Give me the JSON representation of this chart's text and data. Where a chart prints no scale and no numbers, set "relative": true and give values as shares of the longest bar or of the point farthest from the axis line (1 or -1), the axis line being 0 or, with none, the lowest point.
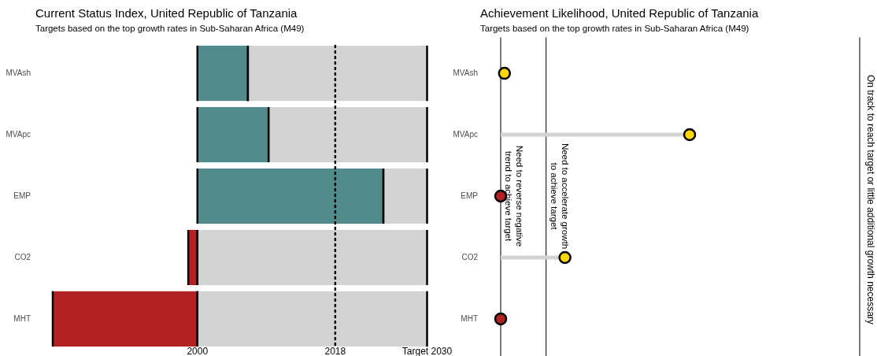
{
  "chart_data": [
    {
      "type": "bar",
      "orientation": "horizontal",
      "title": "Current Status Index, United Republic of Tanzania",
      "subtitle": "Targets based on the top growth rates in Sub-Saharan Africa (M49)",
      "categories": [
        "MVAsh",
        "MVApc",
        "EMP",
        "CO2",
        "MHT"
      ],
      "series": [
        {
          "base": [
            2000,
            2000,
            2000,
            2000,
            2000
          ],
          "colors": [
            "#528b8b",
            "#528b8b",
            "#528b8b",
            "#b22222",
            "#b22222"
          ],
          "values": [
            6.6,
            9.3,
            24.3,
            -1.2,
            -18.9
          ]
        },
        {
          "base": [
            2006.6,
            2009.3,
            2024.3,
            2000,
            2000
          ],
          "color": "#d3d3d3",
          "values": [
            23.4,
            20.7,
            5.7,
            30,
            30
          ]
        }
      ],
      "xlim": [
        1981.1,
        2030
      ],
      "xticks": [
        2000,
        2018,
        {
          "value": 2030,
          "label": "Target 2030"
        }
      ],
      "ref_lines": [
        {
          "axis": "x",
          "value": 2018,
          "line_style": "dotted",
          "color": "#000000"
        }
      ]
    },
    {
      "type": "lollipop",
      "orientation": "horizontal",
      "relative": true,
      "title": "Achievement Likelihood, United Republic of Tanzania",
      "subtitle": "Targets based on the top growth rates in Sub-Saharan Africa (M49)",
      "categories": [
        "MVAsh",
        "MVApc",
        "EMP",
        "CO2",
        "MHT"
      ],
      "series": [
        {
          "colors": [
            "#ffd700",
            "#ffd700",
            "#b22222",
            "#ffd700",
            "#b22222"
          ],
          "values": [
            0.02,
            1,
            0,
            0.34,
            0
          ]
        }
      ],
      "marker": "circle",
      "tick_labels": "y",
      "ref_lines": [
        {
          "axis": "x",
          "value": 0,
          "label": "Need to reverse negative trend to achieve target",
          "color": "#333333"
        },
        {
          "axis": "x",
          "value": 0.24,
          "label": "Need to accelerate growth to achieve target",
          "color": "#333333"
        },
        {
          "axis": "x",
          "value": 1.9,
          "label": "On track to reach target or little additional growth necessary",
          "color": "#333333"
        }
      ]
    }
  ]
}
